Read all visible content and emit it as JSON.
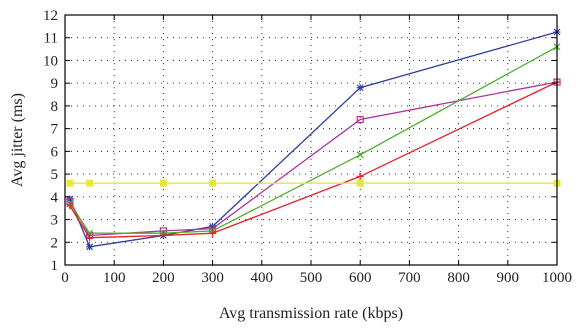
{
  "chart_data": {
    "type": "line",
    "title": "",
    "xlabel": "Avg transmission rate (kbps)",
    "ylabel": "Avg jitter (ms)",
    "xlim": [
      0,
      1000
    ],
    "ylim": [
      1,
      12
    ],
    "xticks": [
      0,
      100,
      200,
      300,
      400,
      500,
      600,
      700,
      800,
      900,
      1000
    ],
    "yticks": [
      1,
      2,
      3,
      4,
      5,
      6,
      7,
      8,
      9,
      10,
      11,
      12
    ],
    "grid": true,
    "x": [
      10,
      50,
      200,
      300,
      600,
      1000
    ],
    "series": [
      {
        "color": "#2a3f9e",
        "marker": "star",
        "values": [
          3.9,
          1.8,
          2.3,
          2.7,
          8.8,
          11.25
        ]
      },
      {
        "color": "#b0309e",
        "marker": "square",
        "values": [
          3.8,
          2.3,
          2.5,
          2.6,
          7.4,
          9.05
        ]
      },
      {
        "color": "#4caf2a",
        "marker": "cross",
        "values": [
          3.7,
          2.4,
          2.4,
          2.5,
          5.85,
          10.6
        ]
      },
      {
        "color": "#e8202a",
        "marker": "plus",
        "values": [
          3.6,
          2.2,
          2.3,
          2.4,
          4.9,
          9.05
        ]
      },
      {
        "color": "#e8e83a",
        "marker": "square-filled",
        "values": [
          4.6,
          4.6,
          4.6,
          4.6,
          4.6,
          4.6
        ]
      }
    ]
  }
}
